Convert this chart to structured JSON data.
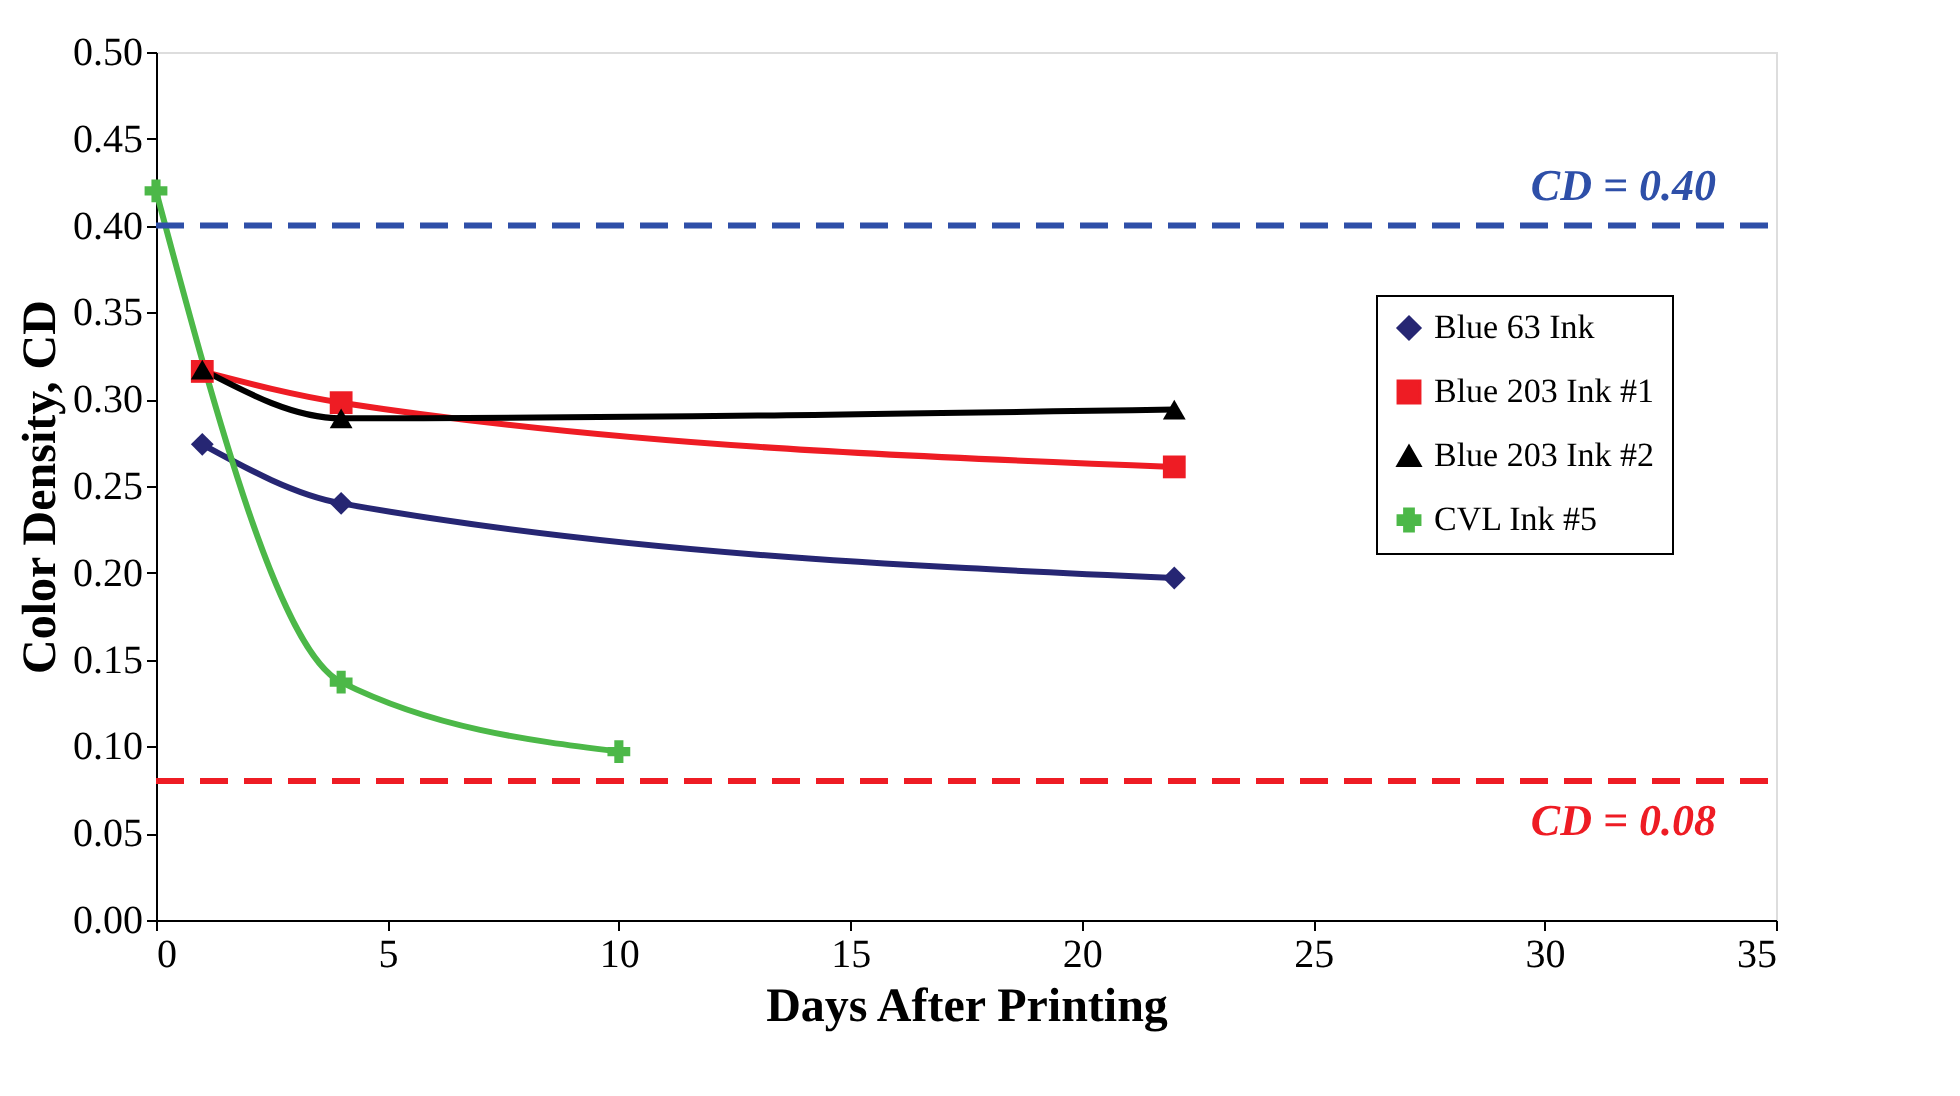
{
  "chart_data": {
    "type": "line",
    "xlabel": "Days After Printing",
    "ylabel": "Color Density, CD",
    "xlim": [
      0,
      35
    ],
    "xticks": [
      0,
      5,
      10,
      15,
      20,
      25,
      30,
      35
    ],
    "ylim": [
      0,
      0.5
    ],
    "yticks": [
      {
        "value": 0,
        "label": "0.00"
      },
      {
        "value": 0.05,
        "label": "0.05"
      },
      {
        "value": 0.1,
        "label": "0.10"
      },
      {
        "value": 0.15,
        "label": "0.15"
      },
      {
        "value": 0.2,
        "label": "0.20"
      },
      {
        "value": 0.25,
        "label": "0.25"
      },
      {
        "value": 0.3,
        "label": "0.30"
      },
      {
        "value": 0.35,
        "label": "0.35"
      },
      {
        "value": 0.4,
        "label": "0.40"
      },
      {
        "value": 0.45,
        "label": "0.45"
      },
      {
        "value": 0.5,
        "label": "0.50"
      }
    ],
    "grid": false,
    "legend": "right",
    "series": [
      {
        "name": "Blue 63 Ink",
        "color": "#262673",
        "marker": "diamond",
        "x": [
          1,
          4,
          22
        ],
        "values": [
          0.274,
          0.24,
          0.197
        ]
      },
      {
        "name": "Blue 203 Ink #1",
        "color": "#ee1c24",
        "marker": "square",
        "x": [
          1,
          4,
          22
        ],
        "values": [
          0.316,
          0.298,
          0.261
        ]
      },
      {
        "name": "Blue 203 Ink #2",
        "color": "#000000",
        "marker": "triangle",
        "x": [
          1,
          4,
          22
        ],
        "values": [
          0.317,
          0.289,
          0.294
        ]
      },
      {
        "name": "CVL Ink #5",
        "color": "#4cb848",
        "marker": "cross",
        "x": [
          0,
          4,
          10
        ],
        "values": [
          0.42,
          0.137,
          0.097
        ]
      }
    ],
    "ref_lines": [
      {
        "axis": "y",
        "value": 0.4,
        "label": "CD = 0.40",
        "color": "#2e4fa8",
        "line_style": "dashed"
      },
      {
        "axis": "y",
        "value": 0.08,
        "label": "CD = 0.08",
        "color": "#ee1c24",
        "line_style": "dashed"
      }
    ]
  }
}
